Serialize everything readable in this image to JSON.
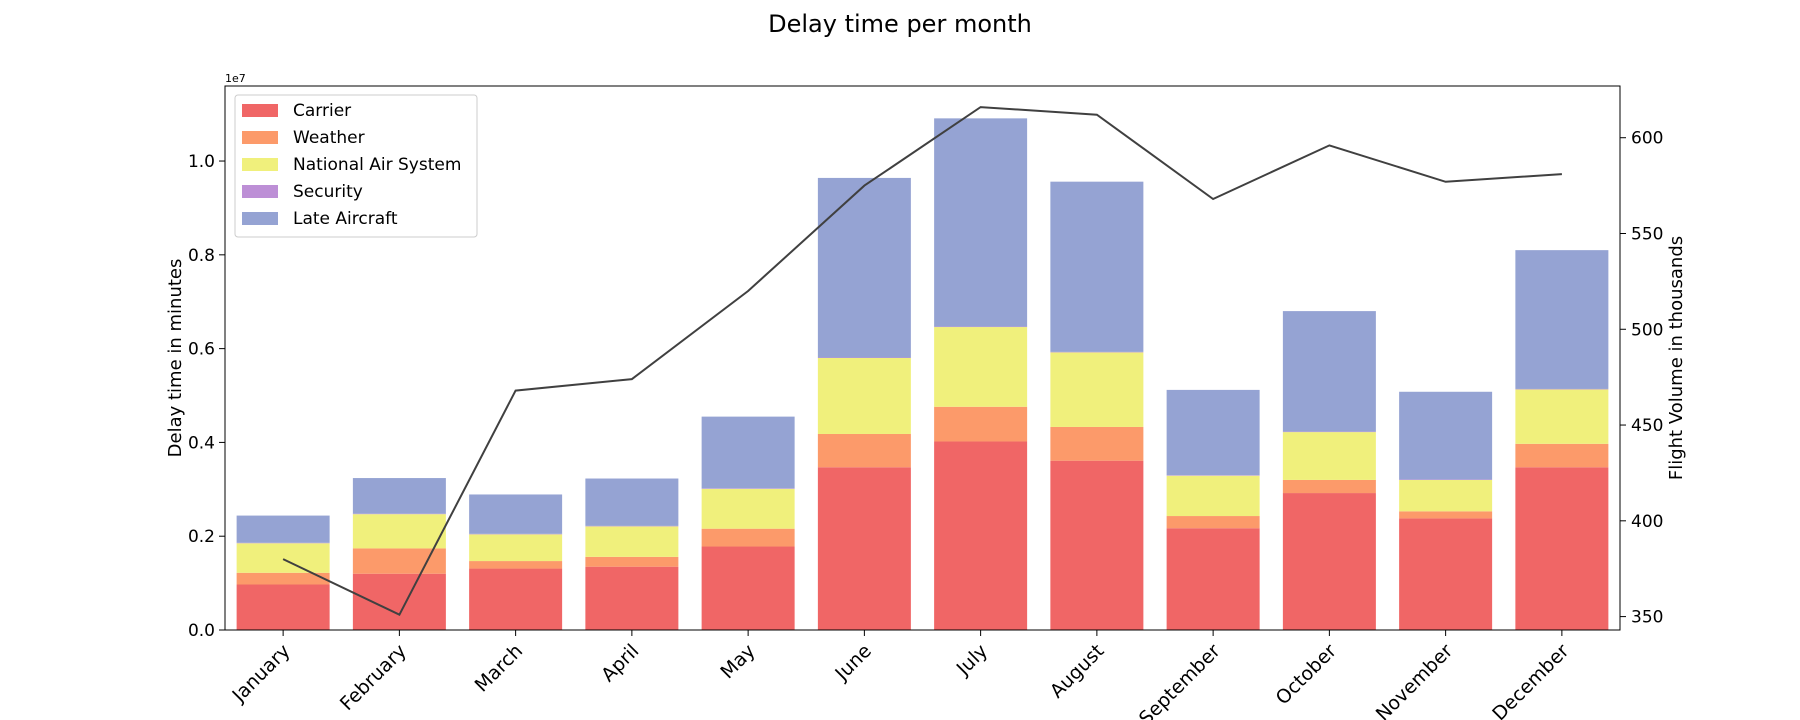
{
  "chart_data": {
    "type": "bar",
    "stacked": true,
    "title": "Delay time per month",
    "categories": [
      "January",
      "February",
      "March",
      "April",
      "May",
      "June",
      "July",
      "August",
      "September",
      "October",
      "November",
      "December"
    ],
    "ylabel": "Delay time in minutes",
    "ylabel_right": "Flight Volume in thousands",
    "y_multiplier": "1e7",
    "ylim": [
      0,
      1.16
    ],
    "y_ticks": [
      0.0,
      0.2,
      0.4,
      0.6,
      0.8,
      1.0
    ],
    "y_tick_labels": [
      "0.0",
      "0.2",
      "0.4",
      "0.6",
      "0.8",
      "1.0"
    ],
    "y2lim": [
      343,
      627
    ],
    "y2_ticks": [
      350,
      400,
      450,
      500,
      550,
      600
    ],
    "y2_tick_labels": [
      "350",
      "400",
      "450",
      "500",
      "550",
      "600"
    ],
    "series": [
      {
        "name": "Carrier",
        "color": "#f06666",
        "values": [
          0.097,
          0.12,
          0.131,
          0.135,
          0.178,
          0.347,
          0.402,
          0.361,
          0.217,
          0.292,
          0.238,
          0.347
        ]
      },
      {
        "name": "Weather",
        "color": "#fc9a6a",
        "values": [
          0.025,
          0.054,
          0.016,
          0.021,
          0.038,
          0.071,
          0.074,
          0.072,
          0.026,
          0.028,
          0.015,
          0.05
        ]
      },
      {
        "name": "National Air System",
        "color": "#f0f07c",
        "values": [
          0.063,
          0.073,
          0.057,
          0.065,
          0.085,
          0.162,
          0.17,
          0.159,
          0.086,
          0.102,
          0.067,
          0.116
        ]
      },
      {
        "name": "Security",
        "color": "#bd8fd6",
        "values": [
          0.001,
          0.001,
          0.001,
          0.001,
          0.001,
          0.001,
          0.001,
          0.001,
          0.001,
          0.001,
          0.001,
          0.001
        ]
      },
      {
        "name": "Late Aircraft",
        "color": "#95a3d3",
        "values": [
          0.058,
          0.076,
          0.084,
          0.101,
          0.153,
          0.383,
          0.444,
          0.363,
          0.182,
          0.257,
          0.187,
          0.296
        ]
      }
    ],
    "line_series": {
      "name": "Flight Volume",
      "color": "#404040",
      "values": [
        380,
        351,
        468,
        474,
        520,
        575,
        616,
        612,
        568,
        596,
        577,
        581
      ]
    },
    "legend": "upper-left",
    "grid": false
  }
}
